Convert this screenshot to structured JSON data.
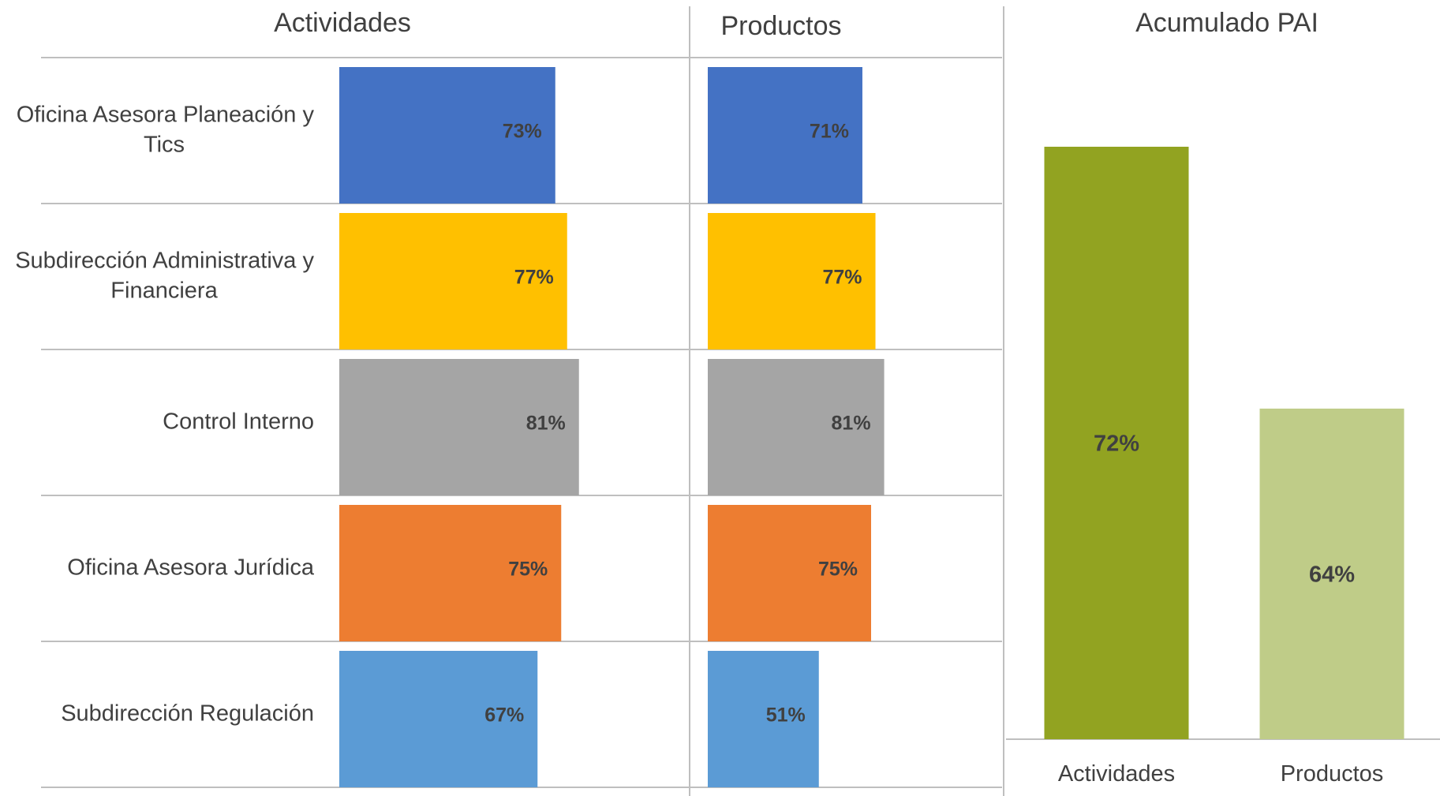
{
  "chart_data": [
    {
      "type": "bar",
      "orientation": "horizontal",
      "title": "Actividades",
      "categories": [
        "Oficina Asesora Planeación y Tics",
        "Subdirección Administrativa y Financiera",
        "Control Interno",
        "Oficina Asesora Jurídica",
        "Subdirección Regulación"
      ],
      "values": [
        73,
        77,
        81,
        75,
        67
      ],
      "value_labels": [
        "73%",
        "77%",
        "81%",
        "75%",
        "67%"
      ],
      "colors": [
        "#4472C4",
        "#FFC000",
        "#A5A5A5",
        "#ED7D31",
        "#5B9BD5"
      ],
      "xlim": [
        0,
        100
      ],
      "grid": true
    },
    {
      "type": "bar",
      "orientation": "horizontal",
      "title": "Productos",
      "categories": [
        "Oficina Asesora Planeación y Tics",
        "Subdirección Administrativa y Financiera",
        "Control Interno",
        "Oficina Asesora Jurídica",
        "Subdirección Regulación"
      ],
      "values": [
        71,
        77,
        81,
        75,
        51
      ],
      "value_labels": [
        "71%",
        "77%",
        "81%",
        "75%",
        "51%"
      ],
      "colors": [
        "#4472C4",
        "#FFC000",
        "#A5A5A5",
        "#ED7D31",
        "#5B9BD5"
      ],
      "xlim": [
        0,
        100
      ],
      "grid": true
    },
    {
      "type": "bar",
      "orientation": "vertical",
      "title": "Acumulado PAI",
      "categories": [
        "Actividades",
        "Productos"
      ],
      "values": [
        72,
        64
      ],
      "value_labels": [
        "72%",
        "64%"
      ],
      "colors": [
        "#92A321",
        "#BFCC88"
      ],
      "ylim": [
        53.9,
        77
      ],
      "grid": false
    }
  ]
}
